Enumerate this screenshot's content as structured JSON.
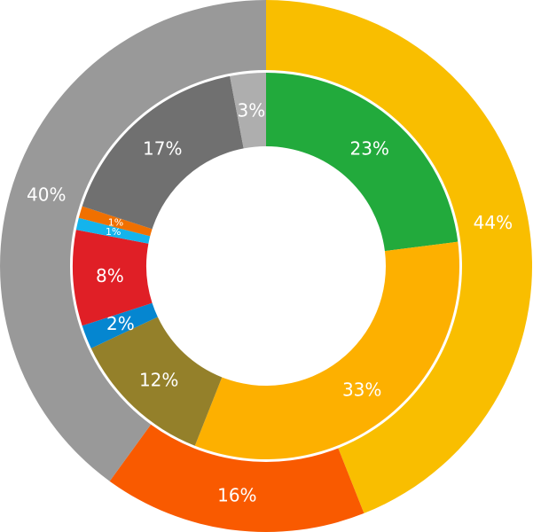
{
  "chart_data": {
    "type": "pie",
    "subtype": "nested-donut",
    "title": "",
    "rings": [
      {
        "name": "outer",
        "slices": [
          {
            "label": "44%",
            "value": 44,
            "color": "#F9BE00"
          },
          {
            "label": "16%",
            "value": 16,
            "color": "#F95A00"
          },
          {
            "label": "40%",
            "value": 40,
            "color": "#999999"
          }
        ]
      },
      {
        "name": "inner",
        "slices": [
          {
            "label": "23%",
            "value": 23,
            "color": "#22AA3C"
          },
          {
            "label": "33%",
            "value": 33,
            "color": "#FDB000"
          },
          {
            "label": "12%",
            "value": 12,
            "color": "#94802A"
          },
          {
            "label": "2%",
            "value": 2,
            "color": "#0586D0"
          },
          {
            "label": "8%",
            "value": 8,
            "color": "#E01F26"
          },
          {
            "label": "1%",
            "value": 1,
            "color": "#14B4EC"
          },
          {
            "label": "1%",
            "value": 1,
            "color": "#F07000"
          },
          {
            "label": "17%",
            "value": 17,
            "color": "#707070"
          },
          {
            "label": "3%",
            "value": 3,
            "color": "#AEAEAE"
          }
        ]
      }
    ]
  }
}
